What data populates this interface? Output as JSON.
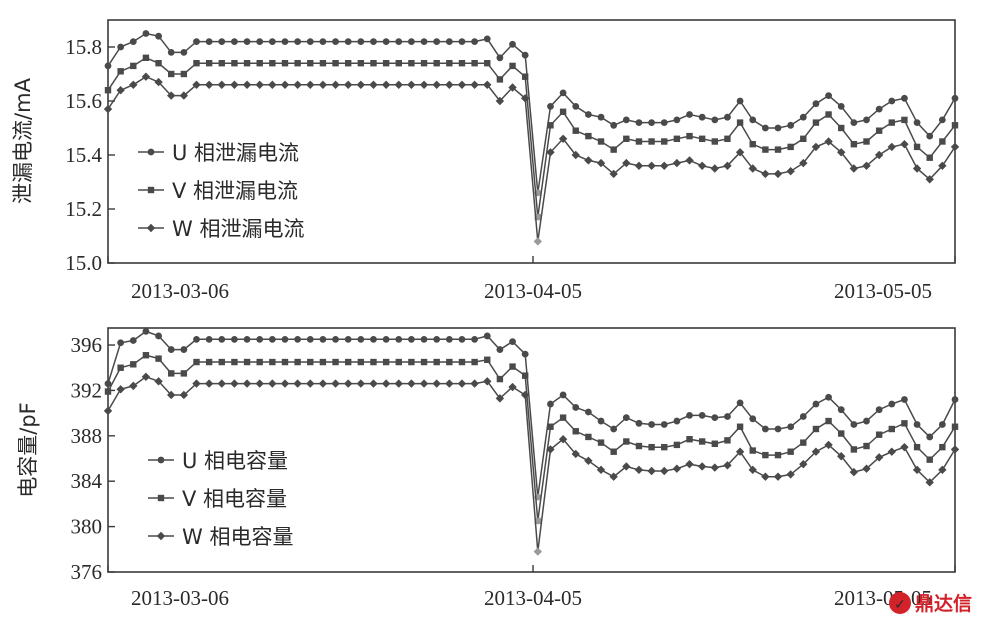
{
  "chart_data": [
    {
      "type": "line",
      "ylabel": "泄漏电流/mA",
      "ylim": [
        15.0,
        15.9
      ],
      "yticks": [
        "15.0",
        "15.2",
        "15.4",
        "15.6",
        "15.8"
      ],
      "xticks": [
        "2013-03-06",
        "2013-04-05",
        "2013-05-05"
      ],
      "grid": false,
      "legend_position": "left",
      "series": [
        {
          "name": "U 相泄漏电流",
          "marker": "circle",
          "values": [
            15.73,
            15.8,
            15.82,
            15.85,
            15.84,
            15.78,
            15.78,
            15.82,
            15.82,
            15.82,
            15.82,
            15.82,
            15.82,
            15.82,
            15.82,
            15.82,
            15.82,
            15.82,
            15.82,
            15.82,
            15.82,
            15.82,
            15.82,
            15.82,
            15.82,
            15.82,
            15.82,
            15.82,
            15.82,
            15.82,
            15.83,
            15.76,
            15.81,
            15.77,
            15.26,
            15.58,
            15.63,
            15.58,
            15.55,
            15.54,
            15.51,
            15.53,
            15.52,
            15.52,
            15.52,
            15.53,
            15.55,
            15.54,
            15.53,
            15.54,
            15.6,
            15.53,
            15.5,
            15.5,
            15.51,
            15.54,
            15.59,
            15.62,
            15.58,
            15.52,
            15.53,
            15.57,
            15.6,
            15.61,
            15.52,
            15.47,
            15.53,
            15.61
          ]
        },
        {
          "name": "V 相泄漏电流",
          "marker": "square",
          "values": [
            15.64,
            15.71,
            15.73,
            15.76,
            15.74,
            15.7,
            15.7,
            15.74,
            15.74,
            15.74,
            15.74,
            15.74,
            15.74,
            15.74,
            15.74,
            15.74,
            15.74,
            15.74,
            15.74,
            15.74,
            15.74,
            15.74,
            15.74,
            15.74,
            15.74,
            15.74,
            15.74,
            15.74,
            15.74,
            15.74,
            15.74,
            15.68,
            15.73,
            15.69,
            15.17,
            15.51,
            15.56,
            15.49,
            15.47,
            15.45,
            15.42,
            15.46,
            15.45,
            15.45,
            15.45,
            15.46,
            15.47,
            15.46,
            15.45,
            15.46,
            15.52,
            15.44,
            15.42,
            15.42,
            15.43,
            15.46,
            15.52,
            15.55,
            15.5,
            15.44,
            15.45,
            15.49,
            15.52,
            15.53,
            15.43,
            15.39,
            15.45,
            15.51
          ]
        },
        {
          "name": "W 相泄漏电流",
          "marker": "diamond",
          "values": [
            15.57,
            15.64,
            15.66,
            15.69,
            15.67,
            15.62,
            15.62,
            15.66,
            15.66,
            15.66,
            15.66,
            15.66,
            15.66,
            15.66,
            15.66,
            15.66,
            15.66,
            15.66,
            15.66,
            15.66,
            15.66,
            15.66,
            15.66,
            15.66,
            15.66,
            15.66,
            15.66,
            15.66,
            15.66,
            15.66,
            15.66,
            15.6,
            15.65,
            15.61,
            15.08,
            15.41,
            15.46,
            15.4,
            15.38,
            15.37,
            15.33,
            15.37,
            15.36,
            15.36,
            15.36,
            15.37,
            15.38,
            15.36,
            15.35,
            15.36,
            15.41,
            15.35,
            15.33,
            15.33,
            15.34,
            15.37,
            15.43,
            15.45,
            15.41,
            15.35,
            15.36,
            15.4,
            15.43,
            15.44,
            15.35,
            15.31,
            15.36,
            15.43
          ]
        }
      ]
    },
    {
      "type": "line",
      "ylabel": "电容量/pF",
      "ylim": [
        376,
        397.5
      ],
      "yticks": [
        "376",
        "380",
        "384",
        "388",
        "392",
        "396"
      ],
      "xticks": [
        "2013-03-06",
        "2013-04-05",
        "2013-05-05"
      ],
      "grid": false,
      "legend_position": "left",
      "series": [
        {
          "name": "U 相电容量",
          "marker": "circle",
          "values": [
            392.6,
            396.2,
            396.4,
            397.2,
            396.8,
            395.6,
            395.6,
            396.5,
            396.5,
            396.5,
            396.5,
            396.5,
            396.5,
            396.5,
            396.5,
            396.5,
            396.5,
            396.5,
            396.5,
            396.5,
            396.5,
            396.5,
            396.5,
            396.5,
            396.5,
            396.5,
            396.5,
            396.5,
            396.5,
            396.5,
            396.8,
            395.6,
            396.3,
            395.2,
            382.6,
            390.8,
            391.6,
            390.5,
            390.1,
            389.3,
            388.6,
            389.6,
            389.1,
            389.0,
            389.0,
            389.3,
            389.8,
            389.8,
            389.6,
            389.7,
            390.9,
            389.5,
            388.6,
            388.6,
            388.8,
            389.7,
            390.8,
            391.4,
            390.3,
            389.0,
            389.3,
            390.3,
            390.8,
            391.2,
            389.0,
            387.9,
            389.0,
            391.2
          ]
        },
        {
          "name": "V 相电容量",
          "marker": "square",
          "values": [
            391.9,
            394.0,
            394.3,
            395.1,
            394.8,
            393.5,
            393.5,
            394.5,
            394.5,
            394.5,
            394.5,
            394.5,
            394.5,
            394.5,
            394.5,
            394.5,
            394.5,
            394.5,
            394.5,
            394.5,
            394.5,
            394.5,
            394.5,
            394.5,
            394.5,
            394.5,
            394.5,
            394.5,
            394.5,
            394.5,
            394.7,
            393.0,
            394.1,
            393.3,
            380.5,
            388.8,
            389.6,
            388.4,
            387.9,
            387.4,
            386.6,
            387.5,
            387.1,
            387.0,
            387.0,
            387.2,
            387.7,
            387.5,
            387.3,
            387.6,
            388.8,
            386.7,
            386.3,
            386.3,
            386.6,
            387.4,
            388.6,
            389.3,
            388.2,
            386.8,
            387.1,
            388.1,
            388.6,
            389.1,
            387.0,
            385.9,
            387.0,
            388.8
          ]
        },
        {
          "name": "W 相电容量",
          "marker": "diamond",
          "values": [
            390.2,
            392.1,
            392.4,
            393.2,
            392.8,
            391.6,
            391.6,
            392.6,
            392.6,
            392.6,
            392.6,
            392.6,
            392.6,
            392.6,
            392.6,
            392.6,
            392.6,
            392.6,
            392.6,
            392.6,
            392.6,
            392.6,
            392.6,
            392.6,
            392.6,
            392.6,
            392.6,
            392.6,
            392.6,
            392.6,
            392.8,
            391.3,
            392.3,
            391.6,
            377.8,
            386.8,
            387.7,
            386.4,
            385.8,
            385.0,
            384.4,
            385.3,
            385.0,
            384.9,
            384.9,
            385.1,
            385.5,
            385.3,
            385.2,
            385.4,
            386.6,
            385.0,
            384.4,
            384.4,
            384.6,
            385.5,
            386.6,
            387.2,
            386.2,
            384.8,
            385.1,
            386.1,
            386.6,
            387.0,
            385.0,
            383.9,
            385.0,
            386.8
          ]
        }
      ]
    }
  ],
  "watermark": {
    "text": "鼎达信",
    "color": "#d2232a"
  }
}
